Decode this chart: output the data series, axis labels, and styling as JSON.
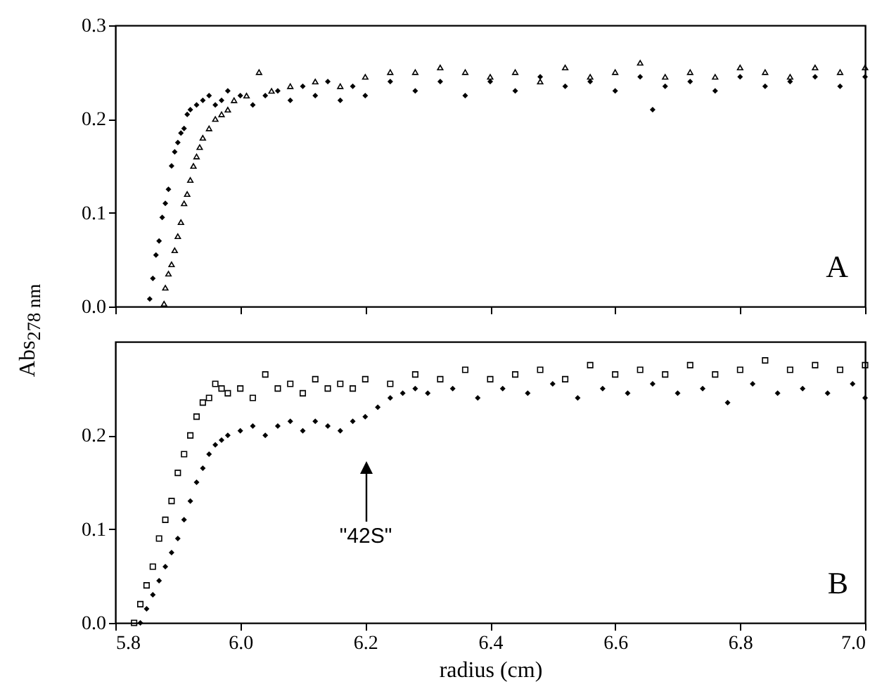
{
  "chart_data": [
    {
      "type": "scatter",
      "ylabel": "Abs$_{278 nm}$",
      "xlim": [
        5.8,
        7.0
      ],
      "xticks": [
        5.8,
        6.0,
        6.2,
        6.4,
        6.6,
        6.8,
        7.0
      ],
      "ylim": [
        0,
        0.3
      ],
      "yticks": [
        {
          "value": 0,
          "label": "0.0"
        },
        0.1,
        0.2,
        0.3
      ],
      "tick_labels": "y",
      "annotations": [
        "A"
      ],
      "series": [
        {
          "color": "#000000",
          "marker": "diamond",
          "x": [
            5.855,
            5.86,
            5.865,
            5.87,
            5.875,
            5.88,
            5.885,
            5.89,
            5.895,
            5.9,
            5.905,
            5.91,
            5.915,
            5.92,
            5.93,
            5.94,
            5.95,
            5.96,
            5.97,
            5.98,
            6.0,
            6.02,
            6.04,
            6.06,
            6.08,
            6.1,
            6.12,
            6.14,
            6.16,
            6.18,
            6.2,
            6.24,
            6.28,
            6.32,
            6.36,
            6.4,
            6.44,
            6.48,
            6.52,
            6.56,
            6.6,
            6.64,
            6.66,
            6.68,
            6.72,
            6.76,
            6.8,
            6.84,
            6.88,
            6.92,
            6.96,
            7.0
          ],
          "values": [
            0.008,
            0.03,
            0.055,
            0.07,
            0.095,
            0.11,
            0.125,
            0.15,
            0.165,
            0.175,
            0.185,
            0.19,
            0.205,
            0.21,
            0.215,
            0.22,
            0.225,
            0.215,
            0.22,
            0.23,
            0.225,
            0.215,
            0.225,
            0.23,
            0.22,
            0.235,
            0.225,
            0.24,
            0.22,
            0.235,
            0.225,
            0.24,
            0.23,
            0.24,
            0.225,
            0.24,
            0.23,
            0.245,
            0.235,
            0.24,
            0.23,
            0.245,
            0.21,
            0.235,
            0.24,
            0.23,
            0.245,
            0.235,
            0.24,
            0.245,
            0.235,
            0.245
          ]
        },
        {
          "color": "#000000",
          "marker": "triangle",
          "x": [
            5.878,
            5.88,
            5.885,
            5.89,
            5.895,
            5.9,
            5.905,
            5.91,
            5.915,
            5.92,
            5.925,
            5.93,
            5.935,
            5.94,
            5.95,
            5.96,
            5.97,
            5.98,
            5.99,
            6.01,
            6.03,
            6.05,
            6.08,
            6.12,
            6.16,
            6.2,
            6.24,
            6.28,
            6.32,
            6.36,
            6.4,
            6.44,
            6.48,
            6.52,
            6.56,
            6.6,
            6.64,
            6.68,
            6.72,
            6.76,
            6.8,
            6.84,
            6.88,
            6.92,
            6.96,
            7.0
          ],
          "values": [
            0.003,
            0.02,
            0.035,
            0.045,
            0.06,
            0.075,
            0.09,
            0.11,
            0.12,
            0.135,
            0.15,
            0.16,
            0.17,
            0.18,
            0.19,
            0.2,
            0.205,
            0.21,
            0.22,
            0.225,
            0.25,
            0.23,
            0.235,
            0.24,
            0.235,
            0.245,
            0.25,
            0.25,
            0.255,
            0.25,
            0.245,
            0.25,
            0.24,
            0.255,
            0.245,
            0.25,
            0.26,
            0.245,
            0.25,
            0.245,
            0.255,
            0.25,
            0.245,
            0.255,
            0.25,
            0.255
          ]
        }
      ]
    },
    {
      "type": "scatter",
      "xlabel": "radius (cm)",
      "xlim": [
        5.8,
        7.0
      ],
      "xticks": [
        5.8,
        {
          "value": 6,
          "label": "6.0"
        },
        6.2,
        6.4,
        6.6,
        6.8,
        {
          "value": 7,
          "label": "7.0"
        }
      ],
      "ylim": [
        0,
        0.3
      ],
      "yticks": [
        {
          "value": 0,
          "label": "0.0"
        },
        0.1,
        0.2
      ],
      "annotations": [
        "B",
        "\"42S\""
      ],
      "series": [
        {
          "color": "#000000",
          "marker": "square",
          "x": [
            5.83,
            5.84,
            5.85,
            5.86,
            5.87,
            5.88,
            5.89,
            5.9,
            5.91,
            5.92,
            5.93,
            5.94,
            5.95,
            5.96,
            5.97,
            5.98,
            6.0,
            6.02,
            6.04,
            6.06,
            6.08,
            6.1,
            6.12,
            6.14,
            6.16,
            6.18,
            6.2,
            6.24,
            6.28,
            6.32,
            6.36,
            6.4,
            6.44,
            6.48,
            6.52,
            6.56,
            6.6,
            6.64,
            6.68,
            6.72,
            6.76,
            6.8,
            6.84,
            6.88,
            6.92,
            6.96,
            7.0
          ],
          "values": [
            0.0,
            0.02,
            0.04,
            0.06,
            0.09,
            0.11,
            0.13,
            0.16,
            0.18,
            0.2,
            0.22,
            0.235,
            0.24,
            0.255,
            0.25,
            0.245,
            0.25,
            0.24,
            0.265,
            0.25,
            0.255,
            0.245,
            0.26,
            0.25,
            0.255,
            0.25,
            0.26,
            0.255,
            0.265,
            0.26,
            0.27,
            0.26,
            0.265,
            0.27,
            0.26,
            0.275,
            0.265,
            0.27,
            0.265,
            0.275,
            0.265,
            0.27,
            0.28,
            0.27,
            0.275,
            0.27,
            0.275
          ]
        },
        {
          "color": "#000000",
          "marker": "diamond",
          "x": [
            5.84,
            5.85,
            5.86,
            5.87,
            5.88,
            5.89,
            5.9,
            5.91,
            5.92,
            5.93,
            5.94,
            5.95,
            5.96,
            5.97,
            5.98,
            6.0,
            6.02,
            6.04,
            6.06,
            6.08,
            6.1,
            6.12,
            6.14,
            6.16,
            6.18,
            6.2,
            6.22,
            6.24,
            6.26,
            6.28,
            6.3,
            6.34,
            6.38,
            6.42,
            6.46,
            6.5,
            6.54,
            6.58,
            6.62,
            6.66,
            6.7,
            6.74,
            6.78,
            6.82,
            6.86,
            6.9,
            6.94,
            6.98,
            7.0
          ],
          "values": [
            0.0,
            0.015,
            0.03,
            0.045,
            0.06,
            0.075,
            0.09,
            0.11,
            0.13,
            0.15,
            0.165,
            0.18,
            0.19,
            0.195,
            0.2,
            0.205,
            0.21,
            0.2,
            0.21,
            0.215,
            0.205,
            0.215,
            0.21,
            0.205,
            0.215,
            0.22,
            0.23,
            0.24,
            0.245,
            0.25,
            0.245,
            0.25,
            0.24,
            0.25,
            0.245,
            0.255,
            0.24,
            0.25,
            0.245,
            0.255,
            0.245,
            0.25,
            0.235,
            0.255,
            0.245,
            0.25,
            0.245,
            0.255,
            0.24
          ]
        }
      ]
    }
  ]
}
